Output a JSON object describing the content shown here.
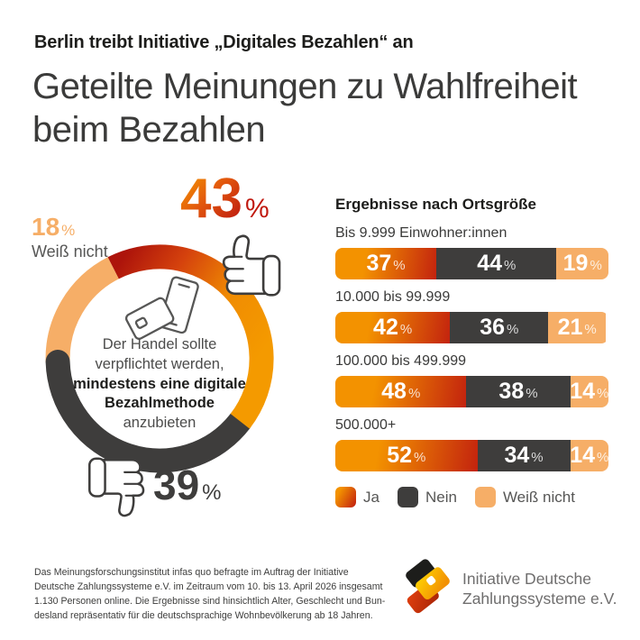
{
  "header": {
    "kicker": "Berlin treibt Initiative „Digitales Bezahlen“ an",
    "title_lines": [
      "Geteilte Meinungen zu Wahlfreiheit",
      "beim Bezahlen"
    ]
  },
  "donut": {
    "ja": {
      "value": "43",
      "unit": "%"
    },
    "nein": {
      "value": "39",
      "unit": "%"
    },
    "weiss": {
      "value": "18",
      "unit": "%",
      "caption": "Weiß nicht"
    },
    "center_lines": [
      "Der Handel sollte",
      "verpflichtet werden,",
      "mindestens eine digitale",
      "Bezahlmethode",
      "anzubieten"
    ]
  },
  "bars_section": {
    "title": "Ergebnisse nach Ortsgröße",
    "unit": "%",
    "groups": [
      {
        "label": "Bis 9.999 Einwohner:innen",
        "ja": 37,
        "nein": 44,
        "weiss": 19
      },
      {
        "label": "10.000 bis 99.999",
        "ja": 42,
        "nein": 36,
        "weiss": 21
      },
      {
        "label": "100.000 bis 499.999",
        "ja": 48,
        "nein": 38,
        "weiss": 14
      },
      {
        "label": "500.000+",
        "ja": 52,
        "nein": 34,
        "weiss": 14
      }
    ]
  },
  "legend": [
    {
      "key": "ja",
      "label": "Ja"
    },
    {
      "key": "nein",
      "label": "Nein"
    },
    {
      "key": "weiss",
      "label": "Weiß nicht"
    }
  ],
  "footer": {
    "lines": [
      "Das Meinungsforschungsinstitut infas quo befragte im Auftrag der Initiative",
      "Deutsche Zahlungssysteme e.V. im Zeitraum vom 10. bis 13. April 2026 insgesamt",
      "1.130 Personen online. Die Ergebnisse sind hinsichtlich Alter, Geschlecht und Bun-",
      "desland repräsentativ für die deutschsprachige Wohnbevölkerung ab 18 Jahren."
    ],
    "logo_lines": [
      "Initiative Deutsche",
      "Zahlungssysteme e.V."
    ]
  },
  "colors": {
    "ja_orange": "#F39200",
    "ja_red": "#C3230E",
    "nein_dark": "#3E3D3C",
    "weiss_light_orange": "#F6AE67",
    "text_dark": "#1D1D1B",
    "text_gray": "#565655"
  },
  "icons": [
    "thumbs-up-icon",
    "thumbs-down-icon",
    "payment-card-phone-icon",
    "stacked-cards-logo-icon"
  ],
  "chart_data": [
    {
      "type": "pie",
      "title": "Der Handel sollte verpflichtet werden, mindestens eine digitale Bezahlmethode anzubieten",
      "labels": [
        "Ja",
        "Nein",
        "Weiß nicht"
      ],
      "values": [
        43,
        39,
        18
      ],
      "unit": "%",
      "style": "donut ring, Ja=orange-red gradient, Nein=dark gray, Weiß nicht=light orange"
    },
    {
      "type": "bar",
      "stacked": true,
      "orientation": "horizontal",
      "title": "Ergebnisse nach Ortsgröße",
      "categories": [
        "Bis 9.999 Einwohner:innen",
        "10.000 bis 99.999",
        "100.000 bis 499.999",
        "500.000+"
      ],
      "series": [
        {
          "name": "Ja",
          "values": [
            37,
            42,
            48,
            52
          ]
        },
        {
          "name": "Nein",
          "values": [
            44,
            36,
            38,
            34
          ]
        },
        {
          "name": "Weiß nicht",
          "values": [
            19,
            21,
            14,
            14
          ]
        }
      ],
      "unit": "%",
      "xlim": [
        0,
        100
      ],
      "legend_position": "bottom"
    }
  ]
}
